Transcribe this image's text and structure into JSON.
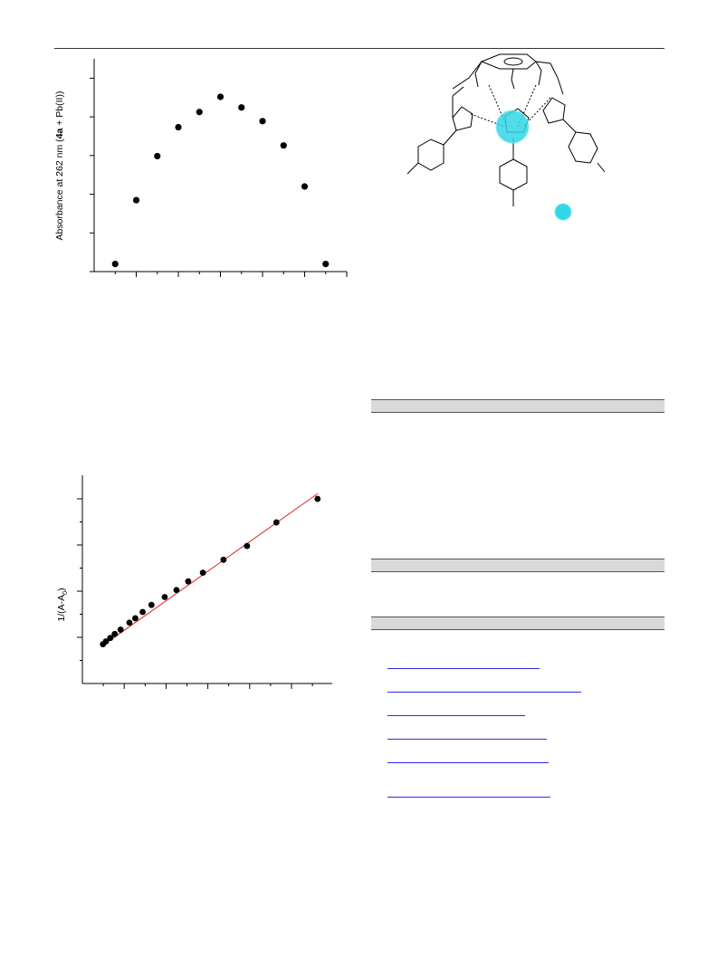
{
  "job_chart": {
    "type": "scatter",
    "ylabel_pre": "Absorbance at 262 nm (",
    "ylabel_bold": "4a",
    "ylabel_post": " + Pb(II))",
    "points": [
      {
        "x": 1,
        "y": 0.05
      },
      {
        "x": 2,
        "y": 0.47
      },
      {
        "x": 3,
        "y": 0.76
      },
      {
        "x": 4,
        "y": 0.95
      },
      {
        "x": 5,
        "y": 1.05
      },
      {
        "x": 6,
        "y": 1.15
      },
      {
        "x": 7,
        "y": 1.08
      },
      {
        "x": 8,
        "y": 0.99
      },
      {
        "x": 9,
        "y": 0.83
      },
      {
        "x": 10,
        "y": 0.56
      },
      {
        "x": 11,
        "y": 0.05
      }
    ],
    "xlim": [
      0,
      12
    ],
    "ylim": [
      0,
      1.4
    ]
  },
  "bh_chart": {
    "type": "scatter",
    "ylabel_main": "1/(A-A",
    "ylabel_sub": "0",
    "ylabel_close": ")",
    "points": [
      {
        "x": 0.7,
        "y": 1.0
      },
      {
        "x": 0.8,
        "y": 1.07
      },
      {
        "x": 0.95,
        "y": 1.16
      },
      {
        "x": 1.1,
        "y": 1.26
      },
      {
        "x": 1.3,
        "y": 1.37
      },
      {
        "x": 1.6,
        "y": 1.55
      },
      {
        "x": 1.8,
        "y": 1.66
      },
      {
        "x": 2.05,
        "y": 1.82
      },
      {
        "x": 2.35,
        "y": 2.0
      },
      {
        "x": 2.8,
        "y": 2.2
      },
      {
        "x": 3.2,
        "y": 2.38
      },
      {
        "x": 3.6,
        "y": 2.6
      },
      {
        "x": 4.1,
        "y": 2.82
      },
      {
        "x": 4.8,
        "y": 3.15
      },
      {
        "x": 5.6,
        "y": 3.5
      },
      {
        "x": 6.6,
        "y": 4.1
      },
      {
        "x": 8.0,
        "y": 4.7
      }
    ],
    "fit": {
      "x0": 0.7,
      "y0": 0.97,
      "x1": 8.0,
      "y1": 4.83,
      "color": "#e02020"
    },
    "xlim": [
      0,
      8.5
    ],
    "ylim": [
      0,
      5.3
    ]
  },
  "colors": {
    "cation": "#33d6e6",
    "link": "#2a2af0"
  }
}
